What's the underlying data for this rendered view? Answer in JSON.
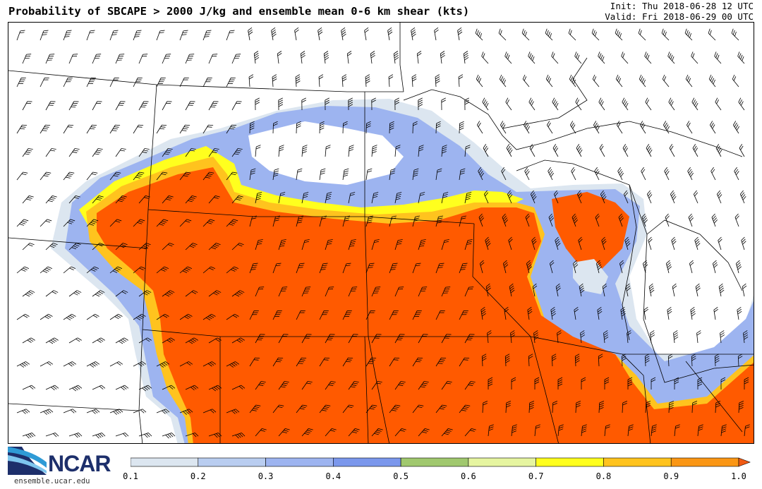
{
  "header": {
    "title": "Probability of SBCAPE > 2000 J/kg and ensemble mean 0-6 km shear (kts)",
    "init": "Init: Thu 2018-06-28 12 UTC",
    "valid": "Valid: Fri 2018-06-29 00 UTC"
  },
  "logo": {
    "name": "NCAR",
    "url": "ensemble.ucar.edu"
  },
  "colorbar": {
    "bins": [
      {
        "from": 0.1,
        "to": 0.2,
        "color": "#dce6f0"
      },
      {
        "from": 0.2,
        "to": 0.3,
        "color": "#b9cdf0"
      },
      {
        "from": 0.3,
        "to": 0.4,
        "color": "#9db4f0"
      },
      {
        "from": 0.4,
        "to": 0.5,
        "color": "#7b97ec"
      },
      {
        "from": 0.5,
        "to": 0.6,
        "color": "#a0c86e"
      },
      {
        "from": 0.6,
        "to": 0.7,
        "color": "#e6f5a0"
      },
      {
        "from": 0.7,
        "to": 0.8,
        "color": "#ffff1e"
      },
      {
        "from": 0.8,
        "to": 0.9,
        "color": "#ffc31e"
      },
      {
        "from": 0.9,
        "to": 1.0,
        "color": "#fa9614"
      }
    ],
    "ticks": [
      "0.1",
      "0.2",
      "0.3",
      "0.4",
      "0.5",
      "0.6",
      "0.7",
      "0.8",
      "0.9",
      "1.0"
    ],
    "overflow_color": "#f05a14"
  },
  "field_colors": {
    "high_prob": "#ff5a00",
    "mid_prob": "#fa9614",
    "low_blue": "#9db4f0",
    "pale_blue": "#dce6f0"
  }
}
